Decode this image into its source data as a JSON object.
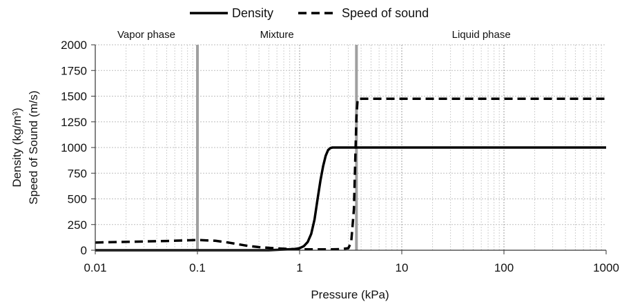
{
  "chart_data": {
    "type": "line",
    "title": "",
    "xlabel": "Pressure (kPa)",
    "ylabel_line1": "Density (kg/m³)",
    "ylabel_line2": "Speed of Sound (m/s)",
    "x_scale": "log",
    "xlim": [
      0.01,
      1000
    ],
    "ylim": [
      0,
      2000
    ],
    "x_ticks": [
      0.01,
      0.1,
      1,
      10,
      100,
      1000
    ],
    "x_tick_labels": [
      "0.01",
      "0.1",
      "1",
      "10",
      "100",
      "1000"
    ],
    "y_ticks": [
      0,
      250,
      500,
      750,
      1000,
      1250,
      1500,
      1750,
      2000
    ],
    "y_tick_labels": [
      "0",
      "250",
      "500",
      "750",
      "1000",
      "1250",
      "1500",
      "1750",
      "2000"
    ],
    "grid": true,
    "legend_position": "top-center",
    "phase_boundaries": [
      0.1,
      3.6
    ],
    "region_labels": [
      "Vapor phase",
      "Mixture",
      "Liquid phase"
    ],
    "series": [
      {
        "name": "Density",
        "style": "solid",
        "color": "#000000",
        "x": [
          0.01,
          0.1,
          0.5,
          0.9,
          1.0,
          1.1,
          1.2,
          1.3,
          1.4,
          1.5,
          1.6,
          1.7,
          1.8,
          1.9,
          2.0,
          2.1,
          2.2,
          2.5,
          3.0,
          3.6,
          10,
          100,
          1000
        ],
        "values": [
          0,
          0,
          0,
          12,
          20,
          40,
          80,
          160,
          300,
          500,
          680,
          820,
          920,
          975,
          995,
          1000,
          1000,
          1000,
          1000,
          1000,
          1000,
          1000,
          1000
        ]
      },
      {
        "name": "Speed of sound",
        "style": "dashed",
        "color": "#000000",
        "x": [
          0.01,
          0.05,
          0.1,
          0.15,
          0.2,
          0.3,
          0.4,
          0.6,
          0.8,
          1.0,
          1.5,
          2.0,
          2.5,
          3.0,
          3.2,
          3.4,
          3.6,
          3.7,
          10,
          100,
          1000
        ],
        "values": [
          75,
          90,
          100,
          92,
          75,
          45,
          30,
          18,
          12,
          10,
          8,
          8,
          10,
          20,
          80,
          400,
          1300,
          1475,
          1475,
          1475,
          1475
        ]
      }
    ]
  }
}
